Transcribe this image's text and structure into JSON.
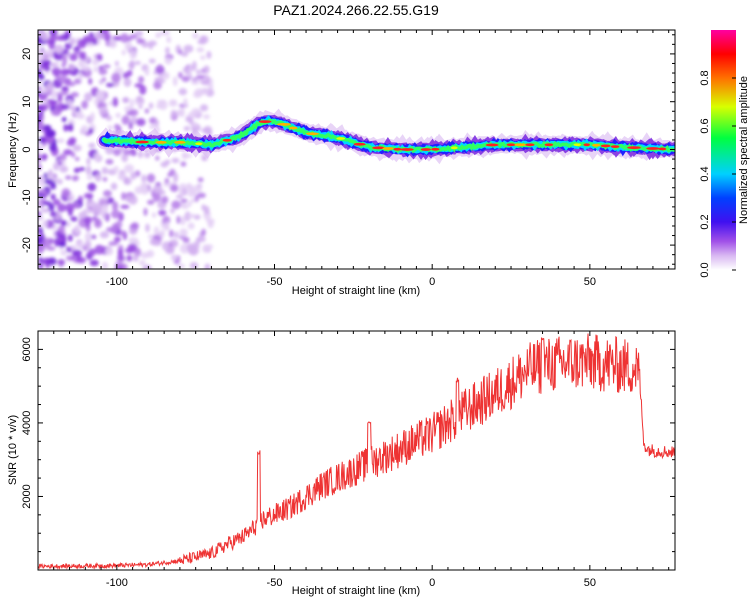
{
  "figure": {
    "title": "PAZ1.2024.266.22.55.G19"
  },
  "chart_data": [
    {
      "type": "heatmap",
      "name": "spectrogram",
      "xlabel": "Height of straight line (km)",
      "ylabel": "Frequency (Hz)",
      "xlim": [
        -125,
        77
      ],
      "ylim": [
        -25,
        25
      ],
      "xticks": [
        -100,
        -50,
        0,
        50
      ],
      "yticks": [
        -20,
        -10,
        0,
        10,
        20
      ],
      "colorbar": {
        "label": "Normalized spectral amplitude",
        "range": [
          0,
          1
        ],
        "ticks": [
          0.0,
          0.2,
          0.4,
          0.6,
          0.8
        ],
        "tick_labels": [
          "0.0",
          "0.2",
          "0.4",
          "0.6",
          "0.8"
        ],
        "colormap": [
          "#ffffff",
          "#e6cdf5",
          "#b070e8",
          "#7a20e0",
          "#2010ff",
          "#00d8ff",
          "#00ff60",
          "#e0ff00",
          "#ff7000",
          "#ff0000",
          "#ff00a0"
        ]
      },
      "ridge": {
        "x": [
          -104,
          -90,
          -80,
          -70,
          -62,
          -58,
          -55,
          -52,
          -48,
          -44,
          -40,
          -35,
          -30,
          -25,
          -20,
          -10,
          0,
          10,
          20,
          30,
          40,
          50,
          60,
          77
        ],
        "y": [
          2,
          1.5,
          1.5,
          1,
          2.5,
          4,
          5.5,
          6,
          5.5,
          4.5,
          3.5,
          3,
          2.5,
          1.5,
          0.5,
          0,
          0,
          0.5,
          1,
          1,
          1,
          1,
          0.5,
          0
        ]
      },
      "noise_region_x": [
        -125,
        -80
      ],
      "grid": false
    },
    {
      "type": "line",
      "name": "snr",
      "xlabel": "Height of straight line (km)",
      "ylabel": "SNR (10 * v/v)",
      "xlim": [
        -125,
        77
      ],
      "ylim": [
        0,
        6500
      ],
      "xticks": [
        -100,
        -50,
        0,
        50
      ],
      "yticks": [
        2000,
        4000,
        6000
      ],
      "color": "#ee3333",
      "grid": false,
      "envelope": {
        "x": [
          -125,
          -100,
          -90,
          -80,
          -70,
          -65,
          -60,
          -57,
          -55,
          -53,
          -50,
          -45,
          -40,
          -35,
          -30,
          -25,
          -20,
          -15,
          -10,
          -5,
          0,
          5,
          10,
          15,
          20,
          25,
          30,
          35,
          40,
          45,
          50,
          55,
          60,
          65,
          66,
          67,
          68,
          70,
          77
        ],
        "y": [
          100,
          120,
          150,
          250,
          450,
          700,
          900,
          1100,
          1300,
          1400,
          1500,
          1700,
          2000,
          2300,
          2500,
          2700,
          2900,
          3100,
          3300,
          3500,
          3700,
          4000,
          4300,
          4550,
          4800,
          5100,
          5400,
          5550,
          5600,
          5650,
          5650,
          5600,
          5550,
          5500,
          5000,
          3500,
          3300,
          3250,
          3200
        ]
      },
      "peaks": [
        {
          "x": -55,
          "y": 3300
        },
        {
          "x": -20,
          "y": 4050
        },
        {
          "x": 8,
          "y": 5250
        },
        {
          "x": 35,
          "y": 6400
        }
      ]
    }
  ]
}
